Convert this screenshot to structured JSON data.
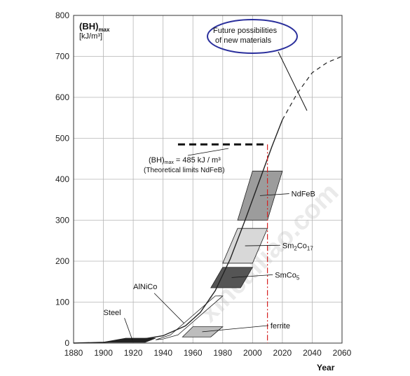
{
  "chart_data": {
    "type": "line",
    "title": "",
    "ylabel_line1": "(BH)",
    "ylabel_sub": "max",
    "ylabel_line2": "[kJ/m³]",
    "xlabel": "Year",
    "xlim": [
      1880,
      2060
    ],
    "ylim": [
      0,
      800
    ],
    "x_ticks": [
      1880,
      1900,
      1920,
      1940,
      1960,
      1980,
      2000,
      2020,
      2040,
      2060
    ],
    "y_ticks": [
      0,
      100,
      200,
      300,
      400,
      500,
      600,
      700,
      800
    ],
    "grid": true,
    "main_curve": {
      "solid": [
        [
          1880,
          0
        ],
        [
          1900,
          2
        ],
        [
          1920,
          6
        ],
        [
          1940,
          18
        ],
        [
          1955,
          42
        ],
        [
          1965,
          75
        ],
        [
          1975,
          128
        ],
        [
          1985,
          205
        ],
        [
          1995,
          300
        ],
        [
          2005,
          400
        ],
        [
          2013,
          480
        ],
        [
          2020,
          545
        ]
      ],
      "dashed": [
        [
          2020,
          545
        ],
        [
          2030,
          610
        ],
        [
          2040,
          660
        ],
        [
          2050,
          685
        ],
        [
          2060,
          700
        ]
      ]
    },
    "theoretical_limit": {
      "value": 485,
      "x_range": [
        1950,
        2010
      ],
      "label_main": "(BH)",
      "label_sub": "max",
      "label_rest": " = 485 kJ / m³",
      "label_line2": "(Theoretical limits NdFeB)"
    },
    "vertical_marker_year": 2010,
    "future_callout": {
      "line1": "Future possibilities",
      "line2": "of new materials"
    },
    "material_regions": [
      {
        "name": "NdFeB",
        "label": "NdFeB",
        "color": "#9c9c9c",
        "polygon": [
          [
            1990,
            300
          ],
          [
            2000,
            420
          ],
          [
            2020,
            420
          ],
          [
            2010,
            300
          ]
        ],
        "label_pos": [
          2026,
          358
        ]
      },
      {
        "name": "Sm2Co17",
        "label_main": "Sm",
        "label_sub1": "2",
        "label_mid": "Co",
        "label_sub2": "17",
        "color": "#d8d8d8",
        "polygon": [
          [
            1980,
            195
          ],
          [
            1990,
            280
          ],
          [
            2010,
            280
          ],
          [
            2000,
            195
          ]
        ],
        "label_pos": [
          2020,
          232
        ]
      },
      {
        "name": "SmCo5",
        "label_main": "SmCo",
        "label_sub": "5",
        "color": "#555555",
        "polygon": [
          [
            1972,
            135
          ],
          [
            1980,
            185
          ],
          [
            2000,
            185
          ],
          [
            1992,
            135
          ]
        ],
        "label_pos": [
          2015,
          160
        ]
      },
      {
        "name": "AlNiCo",
        "label": "AlNiCo",
        "color": "#ffffff",
        "polygon": [
          [
            1940,
            10
          ],
          [
            1950,
            20
          ],
          [
            1980,
            115
          ],
          [
            1975,
            115
          ],
          [
            1945,
            20
          ],
          [
            1935,
            8
          ]
        ],
        "label_pos": [
          1920,
          132
        ]
      },
      {
        "name": "ferrite",
        "label": "ferrite",
        "color": "#bdbdbd",
        "polygon": [
          [
            1953,
            15
          ],
          [
            1960,
            40
          ],
          [
            1980,
            40
          ],
          [
            1972,
            15
          ]
        ],
        "label_pos": [
          2012,
          36
        ]
      },
      {
        "name": "Steel",
        "label": "Steel",
        "color": "#222222",
        "polygon": [
          [
            1900,
            2
          ],
          [
            1915,
            12
          ],
          [
            1935,
            12
          ],
          [
            1928,
            2
          ]
        ],
        "label_pos": [
          1900,
          68
        ]
      }
    ]
  }
}
